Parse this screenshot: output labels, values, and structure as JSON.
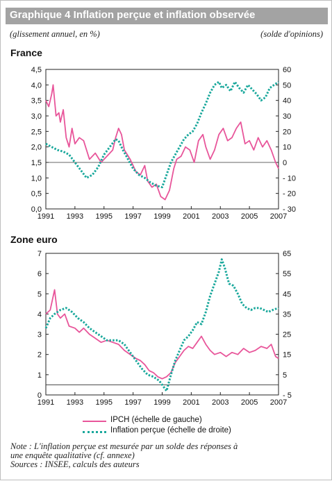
{
  "header": {
    "title": "Graphique 4  Inflation perçue et inflation observée",
    "subtitle_left": "(glissement annuel, en %)",
    "subtitle_right": "(solde d'opinions)"
  },
  "colors": {
    "ipch": "#e8559a",
    "percue": "#1aa89c",
    "axis": "#222222"
  },
  "chart_data": [
    {
      "type": "line",
      "title": "France",
      "x_ticks": [
        "1991",
        "1993",
        "1995",
        "1997",
        "1999",
        "2001",
        "2003",
        "2005",
        "2007"
      ],
      "y_left_ticks": [
        "0,0",
        "0,5",
        "1,0",
        "1,5",
        "2,0",
        "2,5",
        "3,0",
        "3,5",
        "4,0",
        "4,5"
      ],
      "y_right_ticks": [
        "- 30",
        "- 20",
        "- 10",
        "0",
        "10",
        "20",
        "30",
        "40",
        "50",
        "60"
      ],
      "ylim_left": [
        0,
        4.5
      ],
      "ylim_right": [
        -30,
        60
      ],
      "xlim": [
        1991,
        2007
      ],
      "series": [
        {
          "name": "IPCH (échelle de gauche)",
          "axis": "left",
          "style": "solid",
          "x": [
            1991.0,
            1991.2,
            1991.4,
            1991.5,
            1991.7,
            1991.9,
            1992.0,
            1992.2,
            1992.4,
            1992.6,
            1992.8,
            1993.0,
            1993.3,
            1993.6,
            1994.0,
            1994.4,
            1994.8,
            1995.2,
            1995.6,
            1995.8,
            1996.0,
            1996.2,
            1996.4,
            1996.8,
            1997.2,
            1997.5,
            1997.8,
            1998.0,
            1998.3,
            1998.6,
            1998.9,
            1999.2,
            1999.5,
            1999.8,
            2000.0,
            2000.3,
            2000.6,
            2000.9,
            2001.2,
            2001.5,
            2001.8,
            2002.0,
            2002.3,
            2002.6,
            2002.9,
            2003.2,
            2003.5,
            2003.8,
            2004.1,
            2004.4,
            2004.7,
            2005.0,
            2005.3,
            2005.6,
            2005.9,
            2006.2,
            2006.5,
            2006.8,
            2007.0
          ],
          "y": [
            3.5,
            3.3,
            3.7,
            4.0,
            3.0,
            3.1,
            2.8,
            3.2,
            2.3,
            2.0,
            2.6,
            2.1,
            2.3,
            2.2,
            1.6,
            1.8,
            1.5,
            1.7,
            1.9,
            2.3,
            2.6,
            2.4,
            1.9,
            1.6,
            1.2,
            1.1,
            1.4,
            0.9,
            0.7,
            0.8,
            0.4,
            0.3,
            0.6,
            1.3,
            1.6,
            1.7,
            2.0,
            1.9,
            1.5,
            2.2,
            2.4,
            2.0,
            1.6,
            1.9,
            2.4,
            2.6,
            2.2,
            2.3,
            2.6,
            2.8,
            2.1,
            2.2,
            1.9,
            2.3,
            2.0,
            2.2,
            1.9,
            1.5,
            1.3
          ]
        },
        {
          "name": "Inflation perçue (échelle de droite)",
          "axis": "right",
          "style": "dotted",
          "x": [
            1991.0,
            1991.4,
            1991.8,
            1992.2,
            1992.6,
            1993.0,
            1993.4,
            1993.8,
            1994.2,
            1994.6,
            1995.0,
            1995.4,
            1995.8,
            1996.0,
            1996.3,
            1996.6,
            1997.0,
            1997.4,
            1997.8,
            1998.2,
            1998.6,
            1999.0,
            1999.3,
            1999.6,
            1999.9,
            2000.2,
            2000.5,
            2000.8,
            2001.1,
            2001.4,
            2001.7,
            2002.0,
            2002.3,
            2002.6,
            2002.9,
            2003.1,
            2003.4,
            2003.7,
            2004.0,
            2004.3,
            2004.6,
            2004.9,
            2005.2,
            2005.5,
            2005.8,
            2006.1,
            2006.4,
            2006.7,
            2007.0
          ],
          "y": [
            12,
            10,
            8,
            7,
            5,
            0,
            -5,
            -10,
            -8,
            -3,
            5,
            10,
            15,
            14,
            8,
            3,
            -4,
            -8,
            -10,
            -13,
            -15,
            -16,
            -8,
            0,
            5,
            10,
            15,
            18,
            20,
            25,
            32,
            38,
            45,
            50,
            52,
            48,
            50,
            46,
            52,
            48,
            45,
            50,
            47,
            44,
            40,
            42,
            48,
            50,
            52
          ]
        }
      ]
    },
    {
      "type": "line",
      "title": "Zone euro",
      "x_ticks": [
        "1991",
        "1993",
        "1995",
        "1997",
        "1999",
        "2001",
        "2003",
        "2005",
        "2007"
      ],
      "y_left_ticks": [
        "0",
        "1",
        "2",
        "3",
        "4",
        "5",
        "6",
        "7"
      ],
      "y_right_ticks": [
        "- 5",
        "5",
        "15",
        "25",
        "35",
        "45",
        "55",
        "65"
      ],
      "ylim_left": [
        0,
        7
      ],
      "ylim_right": [
        -5,
        65
      ],
      "xlim": [
        1991,
        2007
      ],
      "series": [
        {
          "name": "IPCH (échelle de gauche)",
          "axis": "left",
          "style": "solid",
          "x": [
            1991.0,
            1991.3,
            1991.6,
            1991.8,
            1992.0,
            1992.3,
            1992.6,
            1993.0,
            1993.3,
            1993.6,
            1994.0,
            1994.4,
            1994.8,
            1995.2,
            1995.6,
            1996.0,
            1996.4,
            1996.8,
            1997.2,
            1997.5,
            1997.8,
            1998.1,
            1998.4,
            1998.7,
            1999.0,
            1999.3,
            1999.6,
            1999.9,
            2000.2,
            2000.5,
            2000.8,
            2001.1,
            2001.4,
            2001.7,
            2002.0,
            2002.3,
            2002.6,
            2003.0,
            2003.4,
            2003.8,
            2004.2,
            2004.6,
            2005.0,
            2005.4,
            2005.8,
            2006.2,
            2006.5,
            2006.8,
            2007.0
          ],
          "y": [
            4.0,
            4.2,
            5.2,
            4.0,
            3.8,
            4.0,
            3.4,
            3.3,
            3.1,
            3.3,
            3.0,
            2.8,
            2.6,
            2.7,
            2.6,
            2.5,
            2.2,
            2.0,
            1.8,
            1.7,
            1.5,
            1.2,
            1.1,
            0.9,
            0.8,
            0.9,
            1.1,
            1.6,
            1.9,
            2.2,
            2.4,
            2.3,
            2.6,
            2.9,
            2.5,
            2.2,
            2.0,
            2.1,
            1.9,
            2.1,
            2.0,
            2.3,
            2.1,
            2.2,
            2.4,
            2.3,
            2.5,
            1.9,
            1.8
          ]
        },
        {
          "name": "Inflation perçue (échelle de droite)",
          "axis": "right",
          "style": "dotted",
          "x": [
            1991.0,
            1991.3,
            1991.6,
            1992.0,
            1992.4,
            1992.8,
            1993.2,
            1993.6,
            1994.0,
            1994.4,
            1994.8,
            1995.2,
            1995.6,
            1996.0,
            1996.4,
            1996.8,
            1997.2,
            1997.6,
            1998.0,
            1998.4,
            1998.8,
            1999.0,
            1999.3,
            1999.6,
            1999.9,
            2000.2,
            2000.5,
            2000.8,
            2001.1,
            2001.4,
            2001.7,
            2002.0,
            2002.3,
            2002.6,
            2002.9,
            2003.1,
            2003.3,
            2003.6,
            2003.9,
            2004.2,
            2004.5,
            2004.8,
            2005.1,
            2005.4,
            2005.7,
            2006.0,
            2006.3,
            2006.6,
            2007.0
          ],
          "y": [
            28,
            33,
            35,
            37,
            38,
            36,
            33,
            31,
            28,
            26,
            24,
            22,
            22,
            22,
            20,
            16,
            12,
            8,
            5,
            4,
            2,
            0,
            -3,
            5,
            12,
            17,
            22,
            24,
            27,
            31,
            30,
            36,
            44,
            50,
            56,
            62,
            58,
            50,
            49,
            45,
            40,
            38,
            37,
            38,
            38,
            37,
            36,
            37,
            38
          ]
        }
      ]
    }
  ],
  "legend": {
    "ipch": "IPCH (échelle de gauche)",
    "percue": "Inflation perçue (échelle de droite)"
  },
  "note": {
    "line1": "Note : L'inflation perçue est mesurée par un solde des réponses à",
    "line2": "une enquête qualitative (cf. annexe)",
    "line3": "Sources : INSEE, calculs des auteurs"
  }
}
